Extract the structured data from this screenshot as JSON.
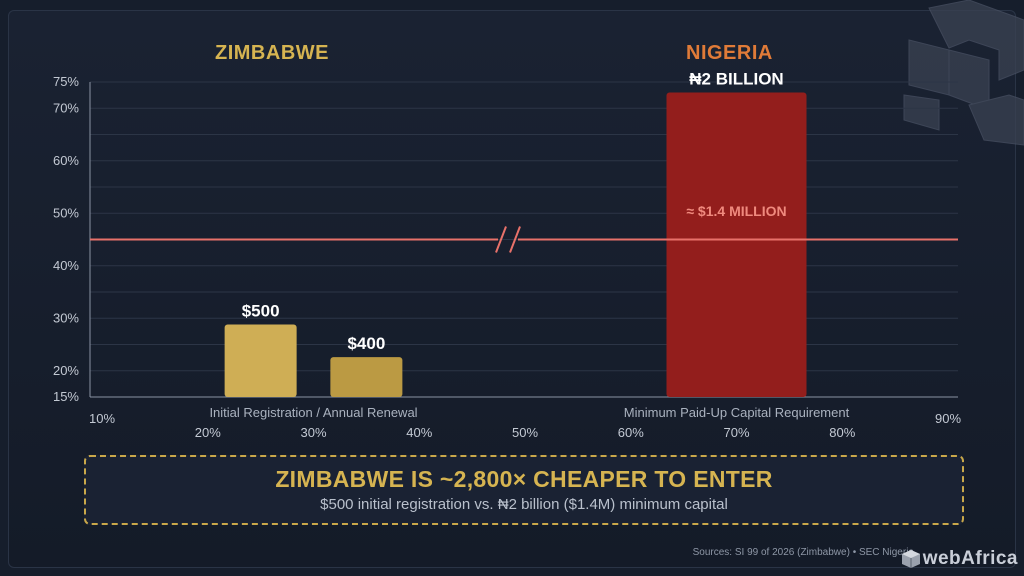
{
  "chart_data": {
    "type": "bar",
    "groups": [
      {
        "name": "ZIMBABWE",
        "color": "#d6b451"
      },
      {
        "name": "NIGERIA",
        "color": "#e07b38"
      }
    ],
    "bars": [
      {
        "group": "ZIMBABWE",
        "x": 25,
        "value": 28.8,
        "label": "$500",
        "color": "#cfae55"
      },
      {
        "group": "ZIMBABWE",
        "x": 35,
        "value": 22.6,
        "label": "$400",
        "color": "#bb9a43"
      },
      {
        "group": "NIGERIA",
        "x": 70,
        "value": 73,
        "label": "₦2 BILLION",
        "inner_label": "≈ $1.4 MILLION",
        "color": "#931e1c"
      }
    ],
    "category_labels": [
      {
        "text": "Initial Registration / Annual Renewal",
        "x": 30
      },
      {
        "text": "Minimum Paid-Up Capital Requirement",
        "x": 70
      }
    ],
    "y_ticks": [
      "15%",
      "20%",
      "25%",
      "30%",
      "35%",
      "40%",
      "45%",
      "50%",
      "55%",
      "60%",
      "65%",
      "70%",
      "75%"
    ],
    "y_tick_values": [
      15,
      20,
      25,
      30,
      35,
      40,
      45,
      50,
      55,
      60,
      65,
      70,
      75
    ],
    "y_tick_labels": [
      "15%",
      "20%",
      "30%",
      "40%",
      "50%",
      "60%",
      "70%",
      "75%"
    ],
    "y_tick_label_values": [
      15,
      20,
      30,
      40,
      50,
      60,
      70,
      75
    ],
    "x_ticks_row1": [
      {
        "text": "10%",
        "x": 10
      },
      {
        "text": "90%",
        "x": 90
      }
    ],
    "x_ticks_row2": [
      {
        "text": "20%",
        "x": 20
      },
      {
        "text": "30%",
        "x": 30
      },
      {
        "text": "40%",
        "x": 40
      },
      {
        "text": "50%",
        "x": 50
      },
      {
        "text": "60%",
        "x": 60
      },
      {
        "text": "70%",
        "x": 70
      },
      {
        "text": "80%",
        "x": 80
      }
    ],
    "ylim": [
      15,
      75
    ],
    "xlim": [
      10,
      90
    ],
    "reference_line": 45,
    "axis_break_x": 50,
    "grid": true
  },
  "callout": {
    "headline": "ZIMBABWE IS ~2,800× CHEAPER TO ENTER",
    "subline": "$500 initial registration vs. ₦2 billion ($1.4M) minimum capital"
  },
  "sources": "Sources: SI 99 of 2026 (Zimbabwe) • SEC Nigeria",
  "watermark": "webAfrica"
}
